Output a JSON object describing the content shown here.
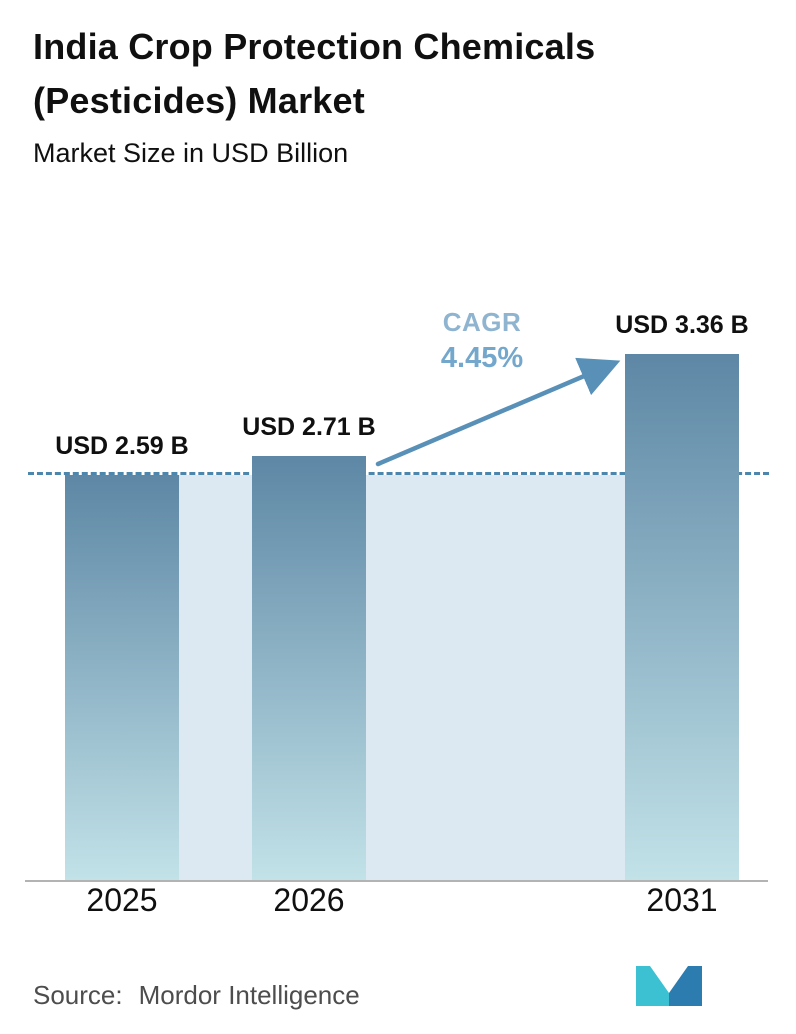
{
  "header": {
    "title": "India Crop Protection Chemicals (Pesticides) Market",
    "subtitle": "Market Size in USD Billion"
  },
  "chart_data": {
    "type": "bar",
    "title": "India Crop Protection Chemicals (Pesticides) Market",
    "subtitle": "Market Size in USD Billion",
    "categories": [
      "2025",
      "2026",
      "2031"
    ],
    "values": [
      2.59,
      2.71,
      3.36
    ],
    "bar_labels": [
      "USD 2.59 B",
      "USD 2.71 B",
      "USD 3.36 B"
    ],
    "unit": "USD Billion",
    "ylim": [
      0,
      3.9
    ],
    "grid": false,
    "legend": false,
    "annotations": {
      "cagr_label": "CAGR",
      "cagr_value": "4.45%",
      "dashed_line_value": 2.59
    }
  },
  "colors": {
    "text": "#101010",
    "bar_top": "#5d87a5",
    "bar_bottom": "#c2e2e8",
    "band": "#dde9f2",
    "dashed": "#4d86ad",
    "arrow": "#5890b8",
    "cagr_label": "#8fb4d0",
    "cagr_value": "#74a7cc",
    "axis": "#b3b3b3",
    "source_text": "#4d4d4d",
    "logo_teal": "#3cc1d3",
    "logo_blue": "#2c7cb0"
  },
  "footer": {
    "source_label": "Source:",
    "source_value": "Mordor Intelligence"
  }
}
